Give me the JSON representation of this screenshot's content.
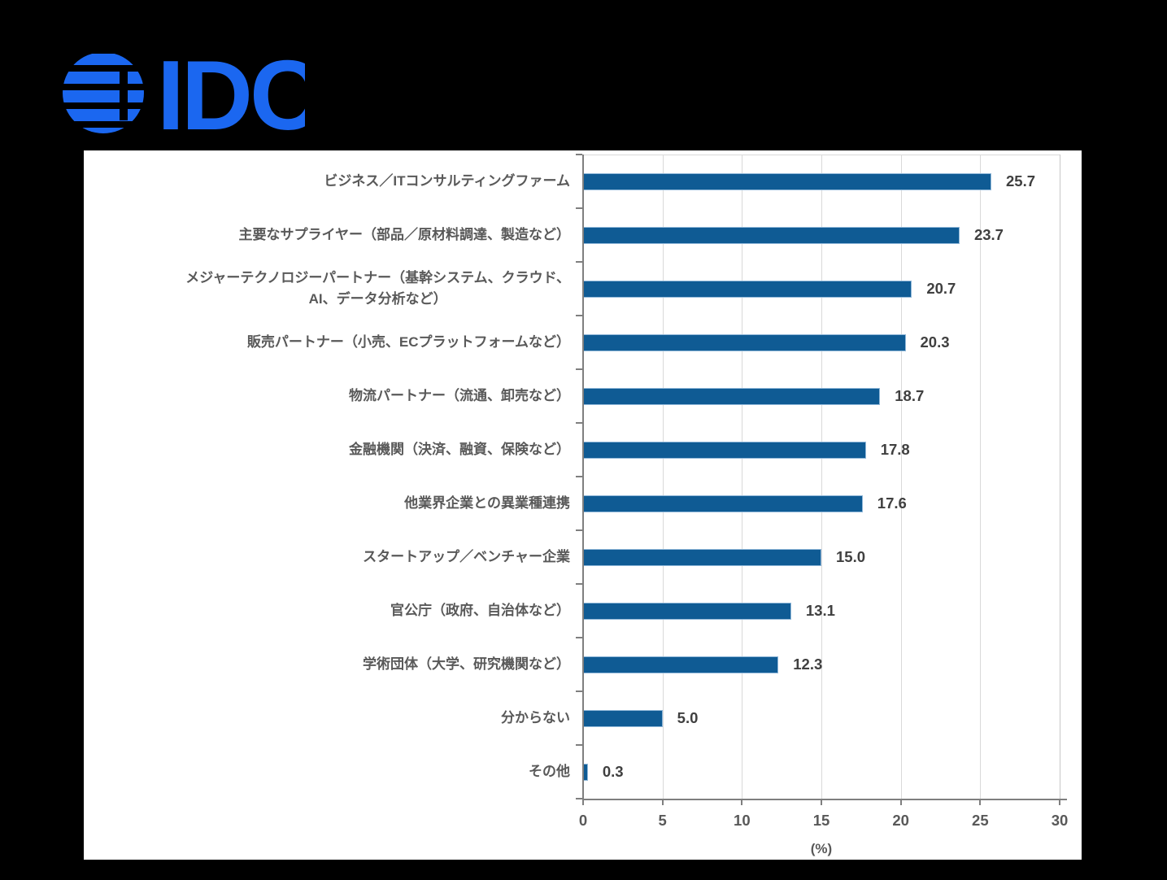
{
  "logo": {
    "text": "IDC",
    "color": "#1b67f0"
  },
  "chart_data": {
    "type": "bar",
    "orientation": "horizontal",
    "categories": [
      "ビジネス／ITコンサルティングファーム",
      "主要なサプライヤー（部品／原材料調達、製造など）",
      "メジャーテクノロジーパートナー（基幹システム、クラウド、\nAI、データ分析など）",
      "販売パートナー（小売、ECプラットフォームなど）",
      "物流パートナー（流通、卸売など）",
      "金融機関（決済、融資、保険など）",
      "他業界企業との異業種連携",
      "スタートアップ／ベンチャー企業",
      "官公庁（政府、自治体など）",
      "学術団体（大学、研究機関など）",
      "分からない",
      "その他"
    ],
    "values": [
      25.7,
      23.7,
      20.7,
      20.3,
      18.7,
      17.8,
      17.6,
      15.0,
      13.1,
      12.3,
      5.0,
      0.3
    ],
    "value_labels": [
      "25.7",
      "23.7",
      "20.7",
      "20.3",
      "18.7",
      "17.8",
      "17.6",
      "15.0",
      "13.1",
      "12.3",
      "5.0",
      "0.3"
    ],
    "xlabel": "(%)",
    "xlim": [
      0,
      30
    ],
    "xticks": [
      0,
      5,
      10,
      15,
      20,
      25,
      30
    ],
    "bar_color": "#0f5b94",
    "grid": true,
    "legend": false,
    "title": ""
  }
}
